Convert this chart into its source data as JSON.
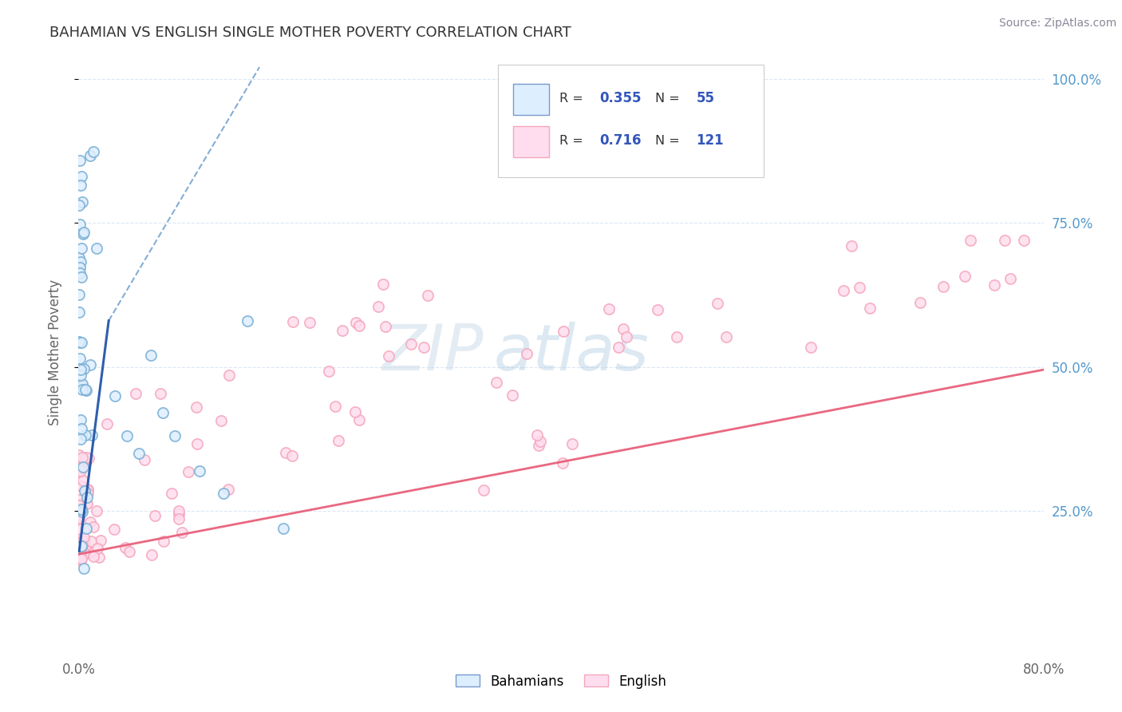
{
  "title": "BAHAMIAN VS ENGLISH SINGLE MOTHER POVERTY CORRELATION CHART",
  "source": "Source: ZipAtlas.com",
  "ylabel": "Single Mother Poverty",
  "right_yticklabels": [
    "25.0%",
    "50.0%",
    "75.0%",
    "100.0%"
  ],
  "watermark_zip": "ZIP",
  "watermark_atlas": "atlas",
  "legend_r1": "0.355",
  "legend_n1": "55",
  "legend_r2": "0.716",
  "legend_n2": "121",
  "blue_color": "#7BAFD4",
  "pink_color": "#F4A8BE",
  "blue_line_solid_color": "#2255AA",
  "blue_line_dash_color": "#6699CC",
  "pink_line_color": "#E8607A",
  "title_color": "#333333",
  "source_color": "#888899",
  "legend_value_color": "#3355BB",
  "background_color": "#FFFFFF",
  "grid_color": "#CCDDEE",
  "right_tick_color": "#5599CC"
}
